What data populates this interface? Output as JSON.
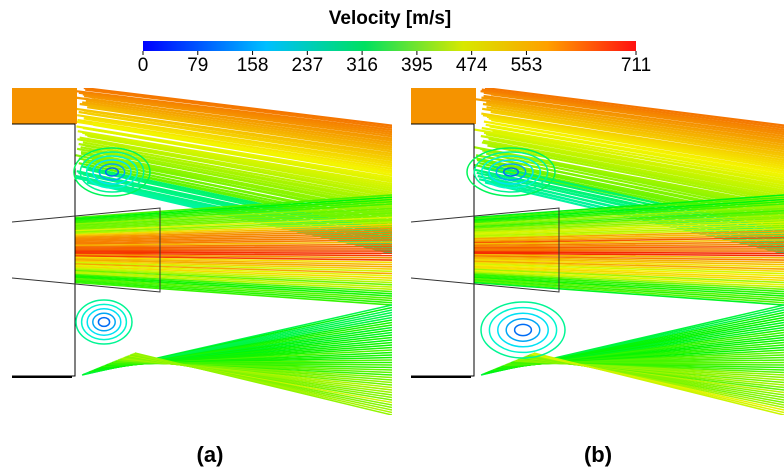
{
  "colorbar": {
    "title": "Velocity  [m/s]",
    "range": [
      0,
      711
    ],
    "ticks": [
      0,
      79,
      158,
      237,
      316,
      395,
      474,
      553,
      711
    ]
  },
  "panels": [
    {
      "label": "(a)"
    },
    {
      "label": "(b)"
    }
  ]
}
